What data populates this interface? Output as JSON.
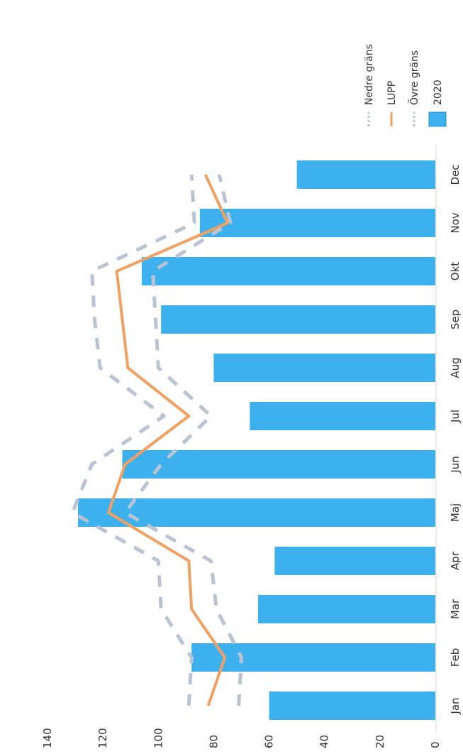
{
  "chart_data": {
    "type": "bar",
    "orientation": "rotated-90-clockwise",
    "categories": [
      "Jan",
      "Feb",
      "Mar",
      "Apr",
      "Maj",
      "Jun",
      "Jul",
      "Aug",
      "Sep",
      "Okt",
      "Nov",
      "Dec"
    ],
    "value_axis": {
      "min": 0,
      "max": 140,
      "step": 20,
      "ticks": [
        "0",
        "20",
        "40",
        "60",
        "80",
        "100",
        "120",
        "140"
      ]
    },
    "grid": false,
    "legend_position": "top-right",
    "series": [
      {
        "name": "2020",
        "kind": "bar",
        "color": "#3DB0EE",
        "values": [
          60,
          88,
          64,
          58,
          129,
          113,
          67,
          80,
          99,
          106,
          85,
          50
        ]
      },
      {
        "name": "Övre gräns",
        "kind": "line-dashed",
        "color": "#B9C3D4",
        "values": [
          89,
          88,
          99,
          100,
          131,
          124,
          98,
          121,
          123,
          124,
          87,
          88
        ]
      },
      {
        "name": "LUPP",
        "kind": "line",
        "color": "#F0A060",
        "values": [
          82,
          76,
          88,
          89,
          118,
          112,
          89,
          111,
          113,
          115,
          75,
          83
        ]
      },
      {
        "name": "Nedre gräns",
        "kind": "line-dashed",
        "color": "#B9C3D4",
        "values": [
          71,
          70,
          79,
          81,
          112,
          99,
          81,
          100,
          101,
          102,
          74,
          78
        ]
      }
    ]
  }
}
